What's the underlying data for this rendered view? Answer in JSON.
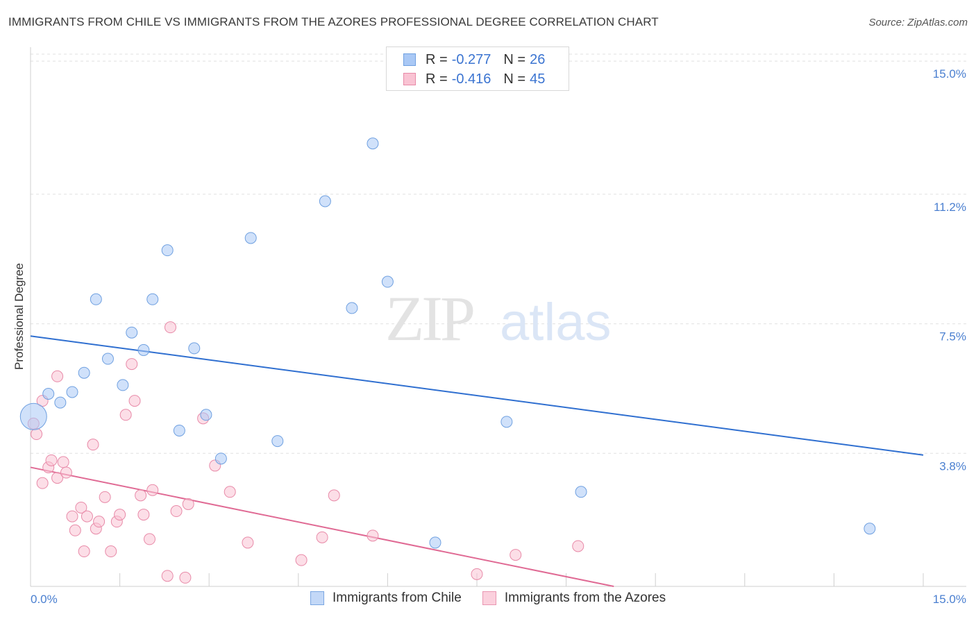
{
  "title": "IMMIGRANTS FROM CHILE VS IMMIGRANTS FROM THE AZORES PROFESSIONAL DEGREE CORRELATION CHART",
  "source": "Source: ZipAtlas.com",
  "watermark": {
    "zip": "ZIP",
    "atlas": "atlas"
  },
  "legend": {
    "r_label": "R =",
    "n_label": "N =",
    "rows": [
      {
        "r": "-0.277",
        "n": "26",
        "color": "#a9c8f5",
        "border": "#6fa0e0"
      },
      {
        "r": "-0.416",
        "n": "45",
        "color": "#f9c3d3",
        "border": "#e88aa8"
      }
    ]
  },
  "bottom_legend": [
    {
      "label": "Immigrants from Chile",
      "color": "#c3d8f7",
      "border": "#7aa6e2"
    },
    {
      "label": "Immigrants from the Azores",
      "color": "#fbd0dd",
      "border": "#e996b1"
    }
  ],
  "chart_data": {
    "type": "scatter",
    "title": "IMMIGRANTS FROM CHILE VS IMMIGRANTS FROM THE AZORES PROFESSIONAL DEGREE CORRELATION CHART",
    "xlabel": "",
    "ylabel": "Professional Degree",
    "xlim": [
      0,
      15
    ],
    "ylim": [
      0,
      15.4
    ],
    "x_tick_labels": [
      "0.0%",
      "15.0%"
    ],
    "y_ticks": [
      3.8,
      7.5,
      11.2,
      15.0
    ],
    "y_tick_labels": [
      "3.8%",
      "7.5%",
      "11.2%",
      "15.0%"
    ],
    "grid": true,
    "series": [
      {
        "name": "Immigrants from Chile",
        "color": "#a9c8f5",
        "stroke": "#6fa0e0",
        "line_color": "#2f6fd0",
        "trend": {
          "x": [
            0,
            15
          ],
          "y": [
            7.15,
            3.75
          ]
        },
        "points": [
          {
            "x": 0.05,
            "y": 4.85,
            "big": true
          },
          {
            "x": 0.3,
            "y": 5.5
          },
          {
            "x": 0.5,
            "y": 5.25
          },
          {
            "x": 0.7,
            "y": 5.55
          },
          {
            "x": 0.9,
            "y": 6.1
          },
          {
            "x": 1.1,
            "y": 8.2
          },
          {
            "x": 1.3,
            "y": 6.5
          },
          {
            "x": 1.55,
            "y": 5.75
          },
          {
            "x": 1.7,
            "y": 7.25
          },
          {
            "x": 1.9,
            "y": 6.75
          },
          {
            "x": 2.05,
            "y": 8.2
          },
          {
            "x": 2.3,
            "y": 9.6
          },
          {
            "x": 2.5,
            "y": 4.45
          },
          {
            "x": 2.75,
            "y": 6.8
          },
          {
            "x": 2.95,
            "y": 4.9
          },
          {
            "x": 3.2,
            "y": 3.65
          },
          {
            "x": 3.7,
            "y": 9.95
          },
          {
            "x": 4.15,
            "y": 4.15
          },
          {
            "x": 4.95,
            "y": 11.0
          },
          {
            "x": 5.4,
            "y": 7.95
          },
          {
            "x": 5.75,
            "y": 12.65
          },
          {
            "x": 6.0,
            "y": 8.7
          },
          {
            "x": 6.8,
            "y": 1.25
          },
          {
            "x": 8.0,
            "y": 4.7
          },
          {
            "x": 9.25,
            "y": 2.7
          },
          {
            "x": 14.1,
            "y": 1.65
          }
        ]
      },
      {
        "name": "Immigrants from the Azores",
        "color": "#f9c3d3",
        "stroke": "#e88aa8",
        "line_color": "#e06a94",
        "trend": {
          "x": [
            0,
            9.8
          ],
          "y": [
            3.4,
            0.0
          ]
        },
        "points": [
          {
            "x": 0.05,
            "y": 4.65
          },
          {
            "x": 0.1,
            "y": 4.35
          },
          {
            "x": 0.2,
            "y": 5.3
          },
          {
            "x": 0.2,
            "y": 2.95
          },
          {
            "x": 0.3,
            "y": 3.4
          },
          {
            "x": 0.35,
            "y": 3.6
          },
          {
            "x": 0.45,
            "y": 3.1
          },
          {
            "x": 0.45,
            "y": 6.0
          },
          {
            "x": 0.55,
            "y": 3.55
          },
          {
            "x": 0.6,
            "y": 3.25
          },
          {
            "x": 0.7,
            "y": 2.0
          },
          {
            "x": 0.75,
            "y": 1.6
          },
          {
            "x": 0.85,
            "y": 2.25
          },
          {
            "x": 0.9,
            "y": 1.0
          },
          {
            "x": 0.95,
            "y": 2.0
          },
          {
            "x": 1.05,
            "y": 4.05
          },
          {
            "x": 1.1,
            "y": 1.65
          },
          {
            "x": 1.15,
            "y": 1.85
          },
          {
            "x": 1.25,
            "y": 2.55
          },
          {
            "x": 1.35,
            "y": 1.0
          },
          {
            "x": 1.45,
            "y": 1.85
          },
          {
            "x": 1.5,
            "y": 2.05
          },
          {
            "x": 1.6,
            "y": 4.9
          },
          {
            "x": 1.7,
            "y": 6.35
          },
          {
            "x": 1.75,
            "y": 5.3
          },
          {
            "x": 1.85,
            "y": 2.6
          },
          {
            "x": 1.9,
            "y": 2.05
          },
          {
            "x": 2.0,
            "y": 1.35
          },
          {
            "x": 2.05,
            "y": 2.75
          },
          {
            "x": 2.3,
            "y": 0.3
          },
          {
            "x": 2.35,
            "y": 7.4
          },
          {
            "x": 2.45,
            "y": 2.15
          },
          {
            "x": 2.6,
            "y": 0.25
          },
          {
            "x": 2.65,
            "y": 2.35
          },
          {
            "x": 2.9,
            "y": 4.8
          },
          {
            "x": 3.1,
            "y": 3.45
          },
          {
            "x": 3.35,
            "y": 2.7
          },
          {
            "x": 3.65,
            "y": 1.25
          },
          {
            "x": 4.55,
            "y": 0.75
          },
          {
            "x": 4.9,
            "y": 1.4
          },
          {
            "x": 5.1,
            "y": 2.6
          },
          {
            "x": 5.75,
            "y": 1.45
          },
          {
            "x": 7.5,
            "y": 0.35
          },
          {
            "x": 8.15,
            "y": 0.9
          },
          {
            "x": 9.2,
            "y": 1.15
          }
        ]
      }
    ]
  }
}
